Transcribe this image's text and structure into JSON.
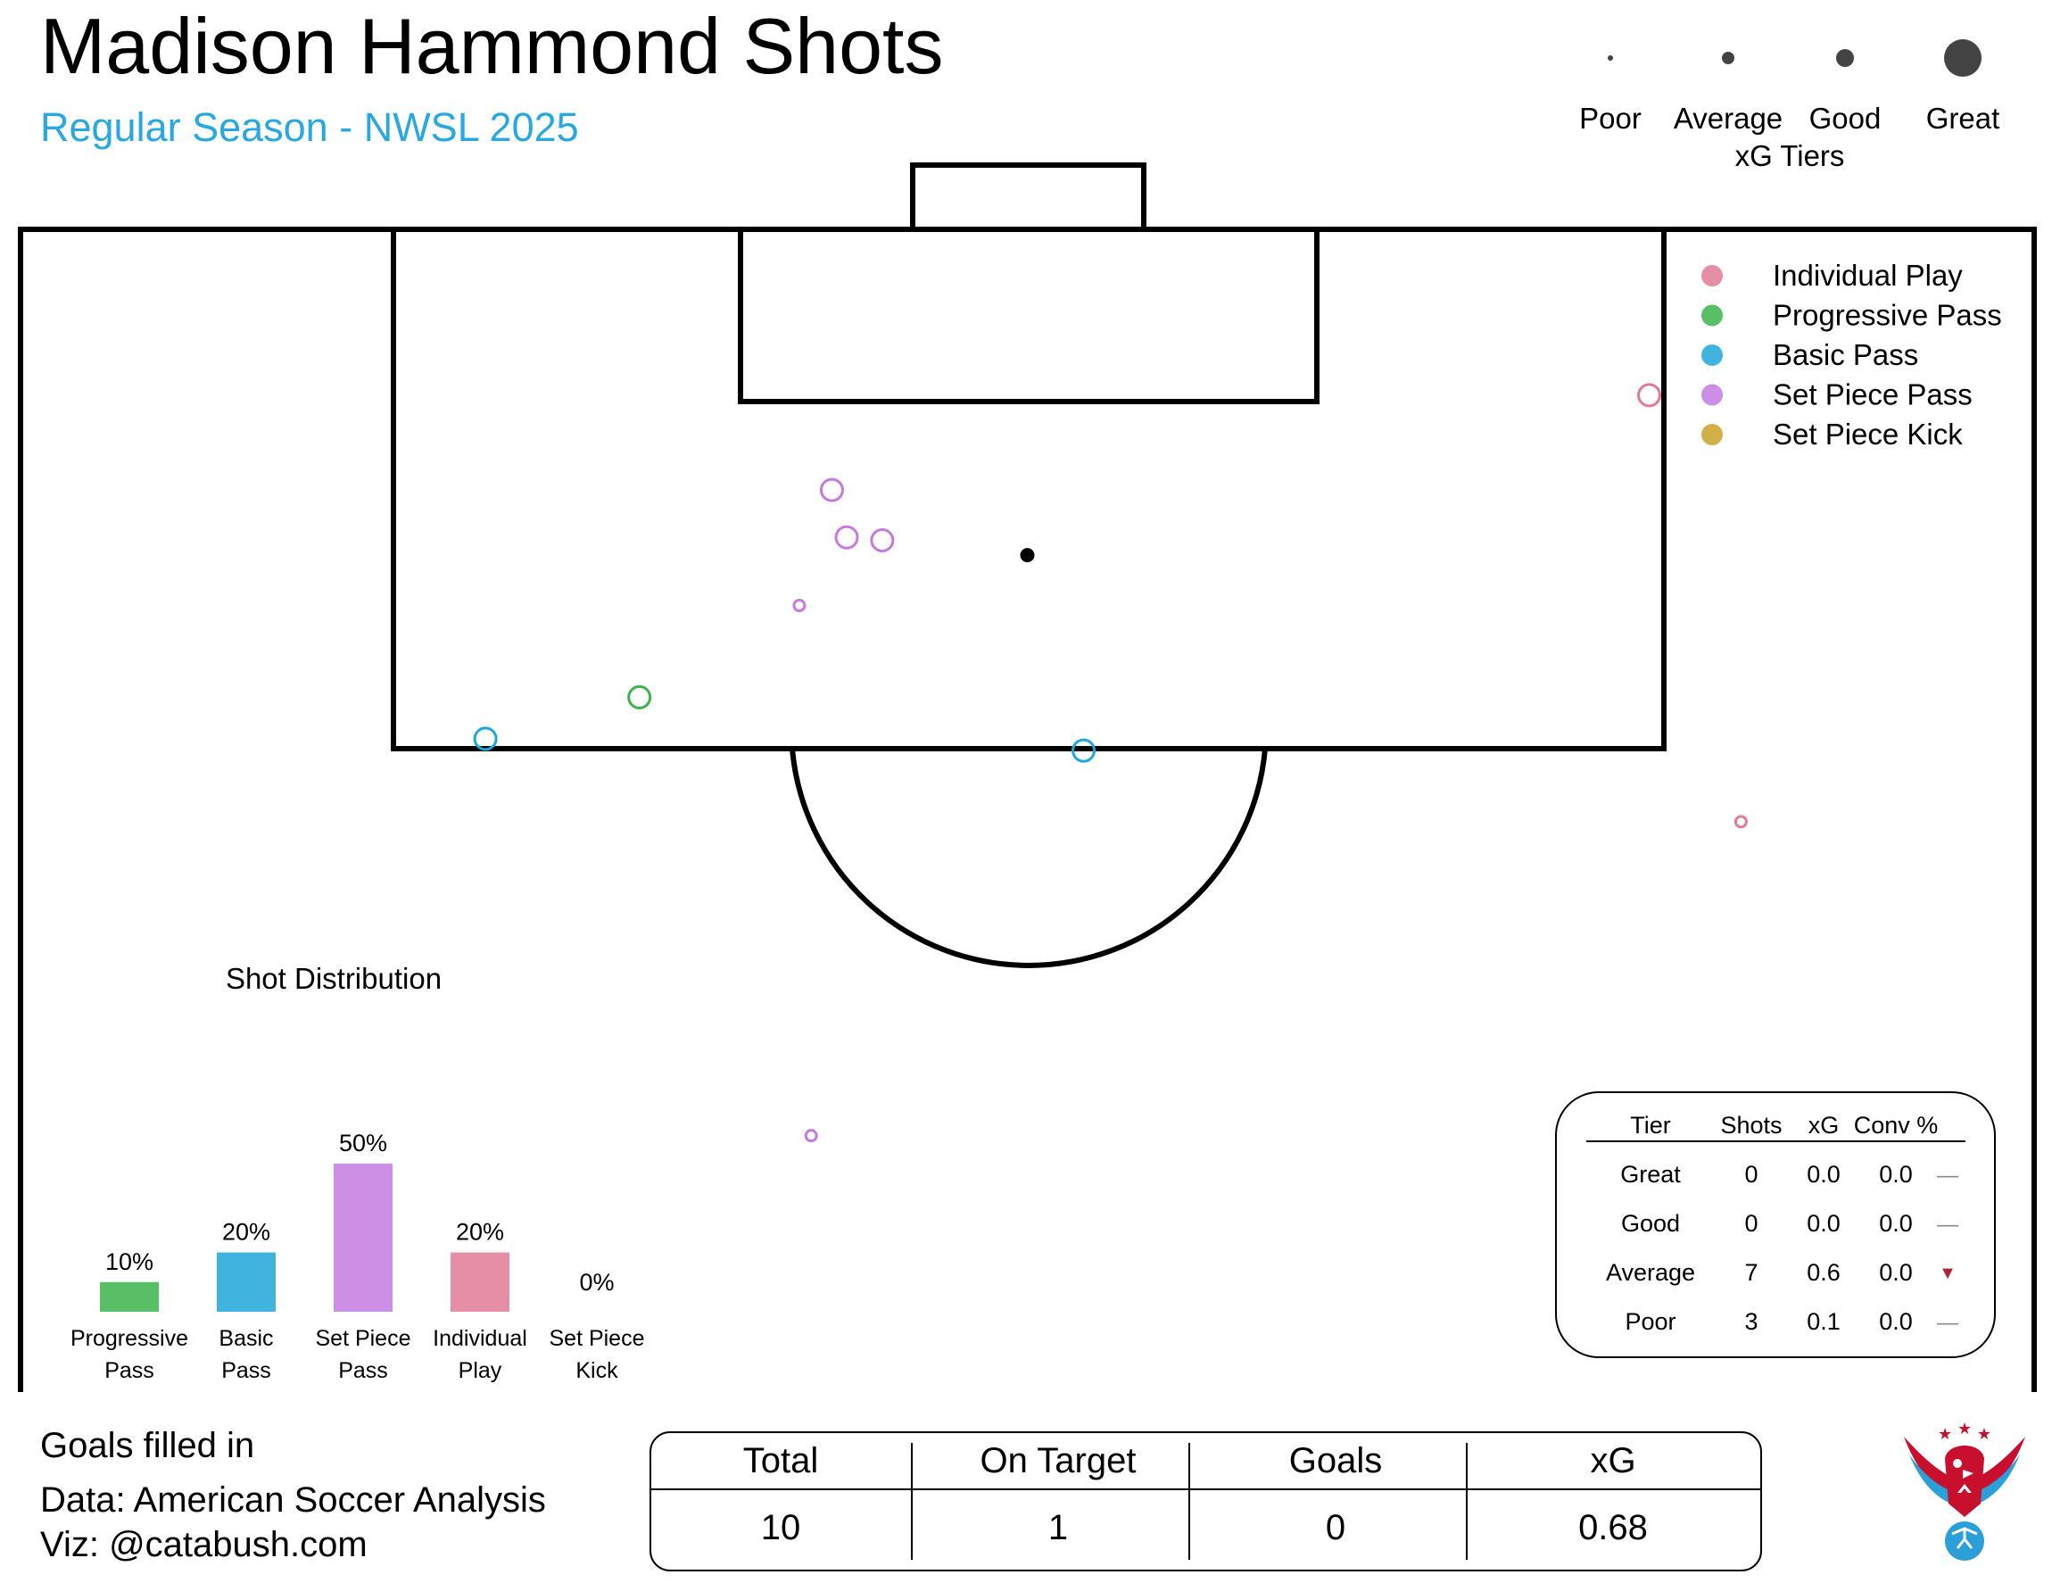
{
  "header": {
    "title": "Madison Hammond Shots",
    "subtitle": "Regular Season - NWSL 2025"
  },
  "colors": {
    "subtitle": "#29a8e0",
    "individual_play": "#e07a96",
    "progressive_pass": "#3cb44b",
    "basic_pass": "#1ea7d8",
    "set_piece_pass": "#c47ae0",
    "set_piece_kick": "#c9a227",
    "logo_red": "#c8102e",
    "logo_blue": "#2a9fd8"
  },
  "xg_tiers_legend": {
    "title": "xG Tiers",
    "tiers": [
      {
        "label": "Poor",
        "size": 1
      },
      {
        "label": "Average",
        "size": 2
      },
      {
        "label": "Good",
        "size": 3
      },
      {
        "label": "Great",
        "size": 5
      }
    ]
  },
  "shot_type_legend": [
    {
      "label": "Individual Play",
      "key": "individual_play"
    },
    {
      "label": "Progressive Pass",
      "key": "progressive_pass"
    },
    {
      "label": "Basic Pass",
      "key": "basic_pass"
    },
    {
      "label": "Set Piece Pass",
      "key": "set_piece_pass"
    },
    {
      "label": "Set Piece Kick",
      "key": "set_piece_kick"
    }
  ],
  "chart_data": [
    {
      "type": "scatter",
      "x_range": [
        0,
        68
      ],
      "y_range": [
        0,
        40
      ],
      "penalty_spot": [
        34,
        11
      ],
      "shots": [
        {
          "x": 55,
          "y": 5.6,
          "type": "individual_play",
          "tier": "Average"
        },
        {
          "x": 58.1,
          "y": 20.0,
          "type": "individual_play",
          "tier": "Poor"
        },
        {
          "x": 27.4,
          "y": 8.8,
          "type": "set_piece_pass",
          "tier": "Average"
        },
        {
          "x": 27.9,
          "y": 10.4,
          "type": "set_piece_pass",
          "tier": "Average"
        },
        {
          "x": 29.1,
          "y": 10.5,
          "type": "set_piece_pass",
          "tier": "Average"
        },
        {
          "x": 26.3,
          "y": 12.7,
          "type": "set_piece_pass",
          "tier": "Poor"
        },
        {
          "x": 26.7,
          "y": 30.6,
          "type": "set_piece_pass",
          "tier": "Poor"
        },
        {
          "x": 20.9,
          "y": 15.8,
          "type": "progressive_pass",
          "tier": "Average"
        },
        {
          "x": 15.7,
          "y": 17.2,
          "type": "basic_pass",
          "tier": "Average"
        },
        {
          "x": 35.9,
          "y": 17.6,
          "type": "basic_pass",
          "tier": "Average"
        }
      ]
    },
    {
      "type": "bar",
      "title": "Shot Distribution",
      "categories": [
        {
          "line1": "Progressive",
          "line2": "Pass"
        },
        {
          "line1": "Basic",
          "line2": "Pass"
        },
        {
          "line1": "Set Piece",
          "line2": "Pass"
        },
        {
          "line1": "Individual",
          "line2": "Play"
        },
        {
          "line1": "Set Piece",
          "line2": "Kick"
        }
      ],
      "values": [
        10,
        20,
        50,
        20,
        0
      ],
      "labels": [
        "10%",
        "20%",
        "50%",
        "20%",
        "0%"
      ],
      "keys": [
        "progressive_pass",
        "basic_pass",
        "set_piece_pass",
        "individual_play",
        "set_piece_kick"
      ],
      "ylim": [
        0,
        50
      ]
    },
    {
      "type": "table",
      "columns": [
        "Tier",
        "Shots",
        "xG",
        "Conv %"
      ],
      "rows": [
        {
          "tier": "Great",
          "shots": "0",
          "xg": "0.0",
          "conv": "0.0",
          "trend": "—"
        },
        {
          "tier": "Good",
          "shots": "0",
          "xg": "0.0",
          "conv": "0.0",
          "trend": "—"
        },
        {
          "tier": "Average",
          "shots": "7",
          "xg": "0.6",
          "conv": "0.0",
          "trend": "▼"
        },
        {
          "tier": "Poor",
          "shots": "3",
          "xg": "0.1",
          "conv": "0.0",
          "trend": "—"
        }
      ]
    }
  ],
  "summary": {
    "headers": [
      "Total",
      "On Target",
      "Goals",
      "xG"
    ],
    "values": [
      "10",
      "1",
      "0",
      "0.68"
    ]
  },
  "footer": {
    "note": "Goals filled in",
    "data_source": "Data: American Soccer Analysis",
    "viz": "Viz: @catabush.com"
  }
}
